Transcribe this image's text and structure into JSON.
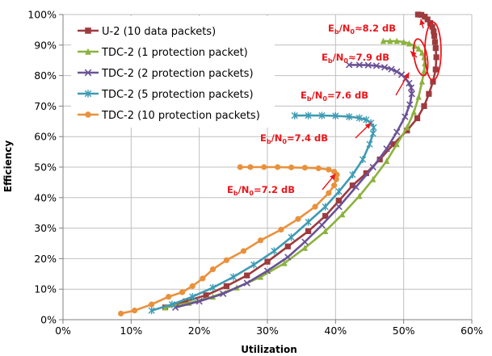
{
  "chart_data": {
    "type": "line",
    "xlabel": "Utilization",
    "ylabel": "Efficiency",
    "xlim": [
      0,
      0.6
    ],
    "ylim": [
      0,
      1.0
    ],
    "x_ticks": [
      "0%",
      "10%",
      "20%",
      "30%",
      "40%",
      "50%",
      "60%"
    ],
    "y_ticks": [
      "0%",
      "10%",
      "20%",
      "30%",
      "40%",
      "50%",
      "60%",
      "70%",
      "80%",
      "90%",
      "100%"
    ],
    "grid": true,
    "legend_position": "top-left",
    "series": [
      {
        "name": "U-2 (10 data packets)",
        "color": "#9e3a3e",
        "marker": "square",
        "points": [
          [
            0.15,
            0.04
          ],
          [
            0.18,
            0.06
          ],
          [
            0.21,
            0.08
          ],
          [
            0.24,
            0.11
          ],
          [
            0.27,
            0.145
          ],
          [
            0.3,
            0.19
          ],
          [
            0.33,
            0.24
          ],
          [
            0.36,
            0.29
          ],
          [
            0.385,
            0.34
          ],
          [
            0.405,
            0.39
          ],
          [
            0.425,
            0.44
          ],
          [
            0.445,
            0.48
          ],
          [
            0.465,
            0.525
          ],
          [
            0.485,
            0.575
          ],
          [
            0.505,
            0.62
          ],
          [
            0.52,
            0.66
          ],
          [
            0.53,
            0.7
          ],
          [
            0.537,
            0.74
          ],
          [
            0.543,
            0.78
          ],
          [
            0.547,
            0.82
          ],
          [
            0.548,
            0.86
          ],
          [
            0.547,
            0.89
          ],
          [
            0.546,
            0.91
          ],
          [
            0.545,
            0.93
          ],
          [
            0.544,
            0.945
          ],
          [
            0.542,
            0.96
          ],
          [
            0.539,
            0.972
          ],
          [
            0.535,
            0.984
          ],
          [
            0.531,
            0.993
          ],
          [
            0.526,
            0.999
          ],
          [
            0.521,
            1.0
          ]
        ]
      },
      {
        "name": "TDC-2 (1 protection packet)",
        "color": "#8cb23e",
        "marker": "triangle",
        "points": [
          [
            0.15,
            0.04
          ],
          [
            0.185,
            0.055
          ],
          [
            0.22,
            0.075
          ],
          [
            0.255,
            0.105
          ],
          [
            0.29,
            0.14
          ],
          [
            0.325,
            0.185
          ],
          [
            0.355,
            0.235
          ],
          [
            0.385,
            0.29
          ],
          [
            0.41,
            0.345
          ],
          [
            0.435,
            0.405
          ],
          [
            0.455,
            0.46
          ],
          [
            0.475,
            0.52
          ],
          [
            0.49,
            0.575
          ],
          [
            0.505,
            0.63
          ],
          [
            0.515,
            0.68
          ],
          [
            0.522,
            0.73
          ],
          [
            0.527,
            0.78
          ],
          [
            0.53,
            0.815
          ],
          [
            0.531,
            0.84
          ],
          [
            0.53,
            0.86
          ],
          [
            0.527,
            0.875
          ],
          [
            0.522,
            0.888
          ],
          [
            0.516,
            0.897
          ],
          [
            0.508,
            0.905
          ],
          [
            0.5,
            0.91
          ],
          [
            0.49,
            0.913
          ],
          [
            0.48,
            0.913
          ],
          [
            0.47,
            0.913
          ]
        ]
      },
      {
        "name": "TDC-2 (2 protection packets)",
        "color": "#6a5296",
        "marker": "x",
        "points": [
          [
            0.165,
            0.04
          ],
          [
            0.2,
            0.06
          ],
          [
            0.235,
            0.085
          ],
          [
            0.27,
            0.12
          ],
          [
            0.3,
            0.16
          ],
          [
            0.33,
            0.205
          ],
          [
            0.355,
            0.255
          ],
          [
            0.38,
            0.31
          ],
          [
            0.405,
            0.37
          ],
          [
            0.43,
            0.435
          ],
          [
            0.455,
            0.5
          ],
          [
            0.475,
            0.56
          ],
          [
            0.49,
            0.615
          ],
          [
            0.502,
            0.665
          ],
          [
            0.509,
            0.705
          ],
          [
            0.512,
            0.74
          ],
          [
            0.511,
            0.76
          ],
          [
            0.508,
            0.775
          ],
          [
            0.503,
            0.79
          ],
          [
            0.497,
            0.803
          ],
          [
            0.49,
            0.813
          ],
          [
            0.482,
            0.821
          ],
          [
            0.472,
            0.827
          ],
          [
            0.46,
            0.832
          ],
          [
            0.448,
            0.834
          ],
          [
            0.435,
            0.835
          ],
          [
            0.42,
            0.835
          ]
        ]
      },
      {
        "name": "TDC-2 (5 protection packets)",
        "color": "#3e9bb4",
        "marker": "star",
        "points": [
          [
            0.13,
            0.03
          ],
          [
            0.16,
            0.05
          ],
          [
            0.19,
            0.075
          ],
          [
            0.22,
            0.105
          ],
          [
            0.25,
            0.14
          ],
          [
            0.28,
            0.18
          ],
          [
            0.31,
            0.225
          ],
          [
            0.335,
            0.27
          ],
          [
            0.36,
            0.32
          ],
          [
            0.385,
            0.37
          ],
          [
            0.405,
            0.42
          ],
          [
            0.425,
            0.475
          ],
          [
            0.44,
            0.525
          ],
          [
            0.45,
            0.575
          ],
          [
            0.455,
            0.61
          ],
          [
            0.456,
            0.63
          ],
          [
            0.452,
            0.645
          ],
          [
            0.445,
            0.655
          ],
          [
            0.435,
            0.661
          ],
          [
            0.42,
            0.665
          ],
          [
            0.4,
            0.668
          ],
          [
            0.38,
            0.669
          ],
          [
            0.36,
            0.669
          ],
          [
            0.34,
            0.669
          ]
        ]
      },
      {
        "name": "TDC-2 (10 protection packets)",
        "color": "#e8913d",
        "marker": "circle",
        "points": [
          [
            0.085,
            0.02
          ],
          [
            0.105,
            0.03
          ],
          [
            0.13,
            0.05
          ],
          [
            0.155,
            0.075
          ],
          [
            0.175,
            0.09
          ],
          [
            0.19,
            0.11
          ],
          [
            0.205,
            0.135
          ],
          [
            0.22,
            0.165
          ],
          [
            0.24,
            0.195
          ],
          [
            0.265,
            0.225
          ],
          [
            0.29,
            0.26
          ],
          [
            0.32,
            0.295
          ],
          [
            0.345,
            0.33
          ],
          [
            0.37,
            0.37
          ],
          [
            0.39,
            0.415
          ],
          [
            0.398,
            0.44
          ],
          [
            0.401,
            0.46
          ],
          [
            0.402,
            0.475
          ],
          [
            0.398,
            0.485
          ],
          [
            0.39,
            0.492
          ],
          [
            0.375,
            0.496
          ],
          [
            0.355,
            0.498
          ],
          [
            0.335,
            0.499
          ],
          [
            0.315,
            0.5
          ],
          [
            0.295,
            0.5
          ],
          [
            0.275,
            0.5
          ],
          [
            0.26,
            0.5
          ]
        ]
      }
    ],
    "annotations": [
      {
        "prefix": "E",
        "sub1": "b",
        "mid": "/N",
        "sub2": "0",
        "suffix": "≈8.2 dB"
      },
      {
        "prefix": "E",
        "sub1": "b",
        "mid": "/N",
        "sub2": "0",
        "suffix": "≈7.9 dB"
      },
      {
        "prefix": "E",
        "sub1": "b",
        "mid": "/N",
        "sub2": "0",
        "suffix": "=7.6 dB"
      },
      {
        "prefix": "E",
        "sub1": "b",
        "mid": "/N",
        "sub2": "0",
        "suffix": "=7.4 dB"
      },
      {
        "prefix": "E",
        "sub1": "b",
        "mid": "/N",
        "sub2": "0",
        "suffix": "=7.2 dB"
      }
    ],
    "annotation_color": "#e8161b"
  }
}
